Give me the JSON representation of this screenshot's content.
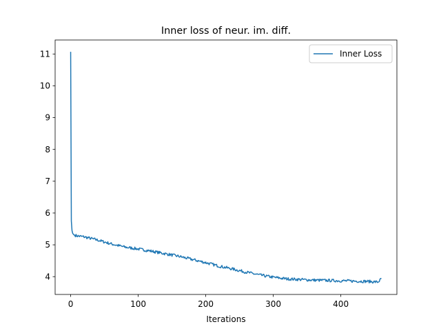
{
  "chart_data": {
    "type": "line",
    "title": "Inner loss of neur. im. diff.",
    "xlabel": "Iterations",
    "ylabel": "",
    "xlim": [
      -23,
      483
    ],
    "ylim": [
      3.44,
      11.44
    ],
    "xticks": [
      0,
      100,
      200,
      300,
      400
    ],
    "yticks": [
      4,
      5,
      6,
      7,
      8,
      9,
      10,
      11
    ],
    "grid": false,
    "legend_position": "top-right",
    "series": [
      {
        "name": "Inner Loss",
        "color": "#1f77b4",
        "x_start": 0,
        "x_end": 460,
        "y_summary_points": [
          [
            0,
            11.07
          ],
          [
            1,
            5.75
          ],
          [
            2,
            5.45
          ],
          [
            3,
            5.36
          ],
          [
            5,
            5.31
          ],
          [
            10,
            5.28
          ],
          [
            20,
            5.25
          ],
          [
            40,
            5.15
          ],
          [
            60,
            5.03
          ],
          [
            80,
            4.93
          ],
          [
            100,
            4.87
          ],
          [
            120,
            4.8
          ],
          [
            140,
            4.72
          ],
          [
            160,
            4.64
          ],
          [
            180,
            4.54
          ],
          [
            200,
            4.44
          ],
          [
            220,
            4.33
          ],
          [
            240,
            4.24
          ],
          [
            260,
            4.14
          ],
          [
            280,
            4.05
          ],
          [
            300,
            3.98
          ],
          [
            320,
            3.93
          ],
          [
            340,
            3.91
          ],
          [
            360,
            3.89
          ],
          [
            380,
            3.88
          ],
          [
            400,
            3.87
          ],
          [
            420,
            3.86
          ],
          [
            440,
            3.85
          ],
          [
            455,
            3.83
          ],
          [
            460,
            3.93
          ]
        ]
      }
    ]
  }
}
